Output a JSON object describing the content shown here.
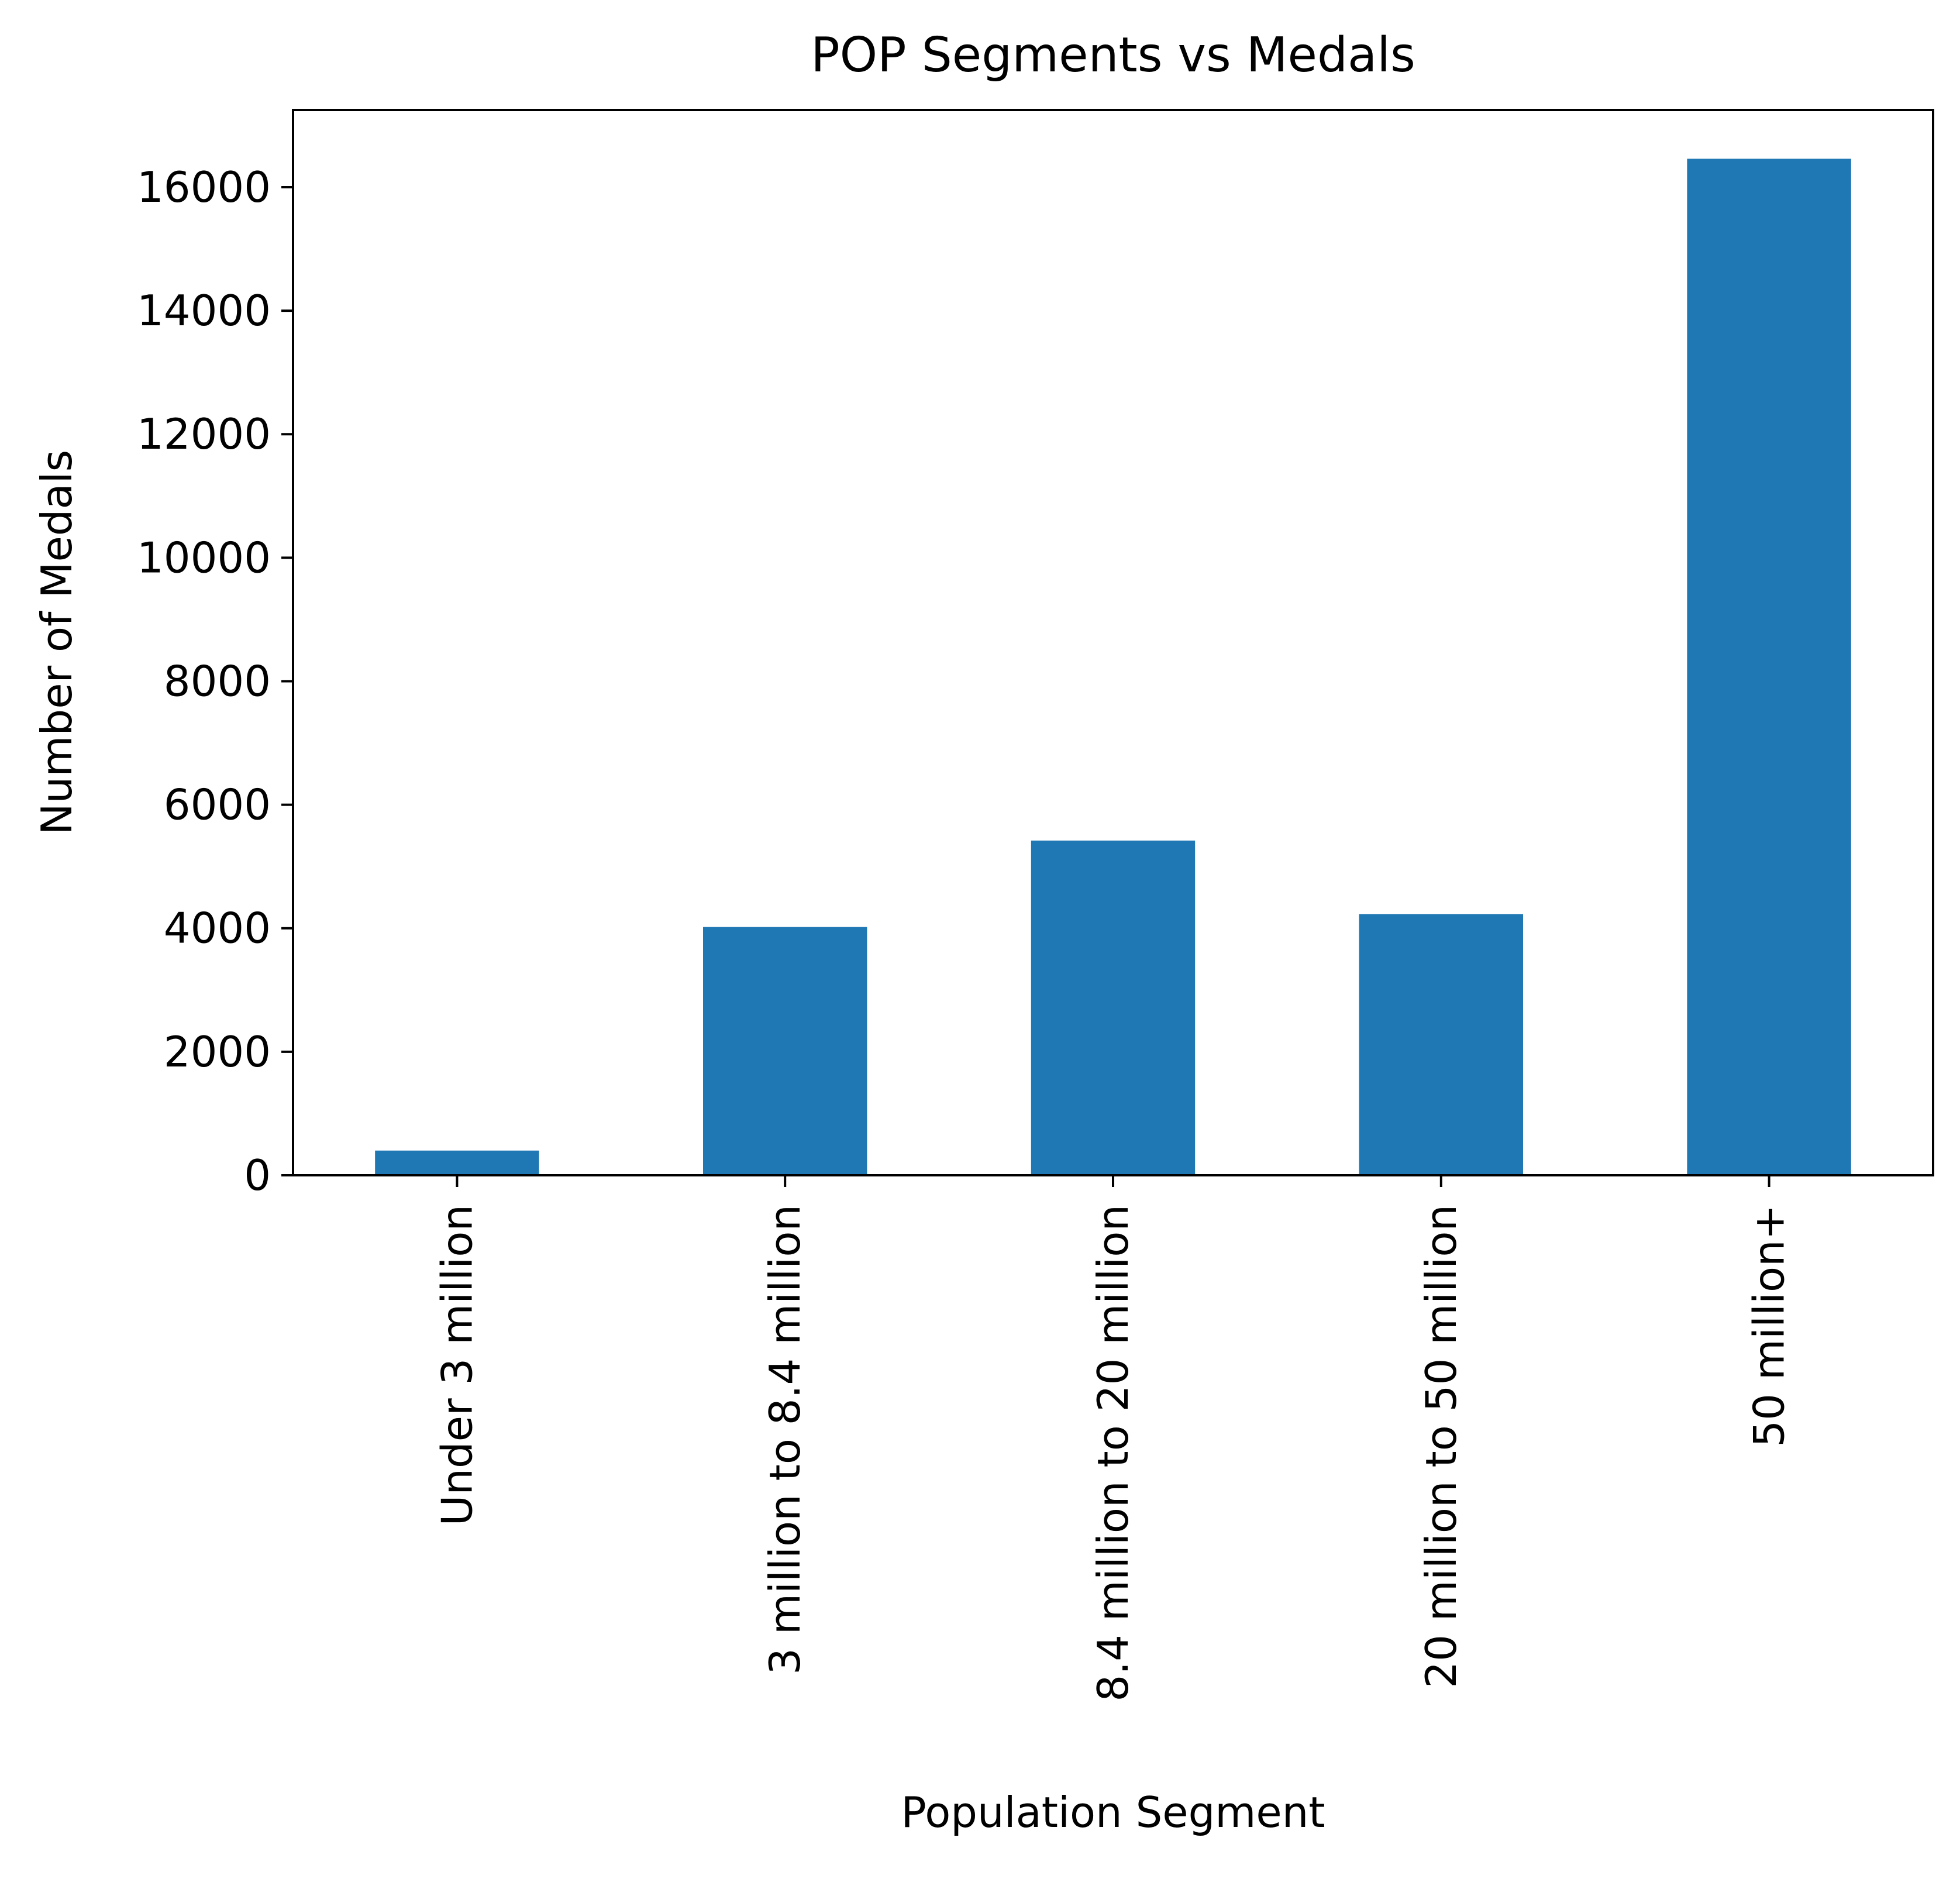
{
  "chart_data": {
    "type": "bar",
    "title": "POP Segments vs Medals",
    "xlabel": "Population Segment",
    "ylabel": "Number of Medals",
    "categories": [
      "Under 3 million",
      "3 million to 8.4 million",
      "8.4 million to 20 million",
      "20 million to 50 million",
      "50 million+"
    ],
    "values": [
      400,
      4020,
      5420,
      4230,
      16460
    ],
    "ylim": [
      0,
      17250
    ],
    "yticks": [
      0,
      2000,
      4000,
      6000,
      8000,
      10000,
      12000,
      14000,
      16000
    ],
    "grid": false,
    "legend": "none",
    "bar_color": "#1f77b4"
  }
}
